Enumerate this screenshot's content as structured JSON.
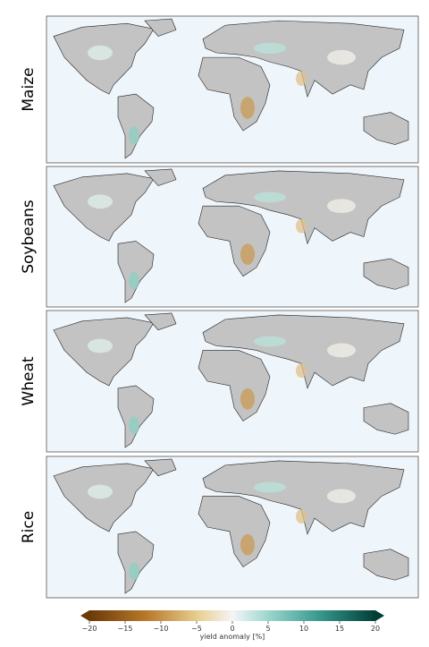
{
  "panels": [
    {
      "label": "Maize"
    },
    {
      "label": "Soybeans"
    },
    {
      "label": "Wheat"
    },
    {
      "label": "Rice"
    }
  ],
  "colorbar": {
    "label": "yield anomaly [%]",
    "range": [
      -20,
      20
    ],
    "ticks": [
      {
        "value": -20,
        "label": "−20"
      },
      {
        "value": -15,
        "label": "−15"
      },
      {
        "value": -10,
        "label": "−10"
      },
      {
        "value": -5,
        "label": "−5"
      },
      0,
      5,
      10,
      15,
      20
    ]
  }
}
